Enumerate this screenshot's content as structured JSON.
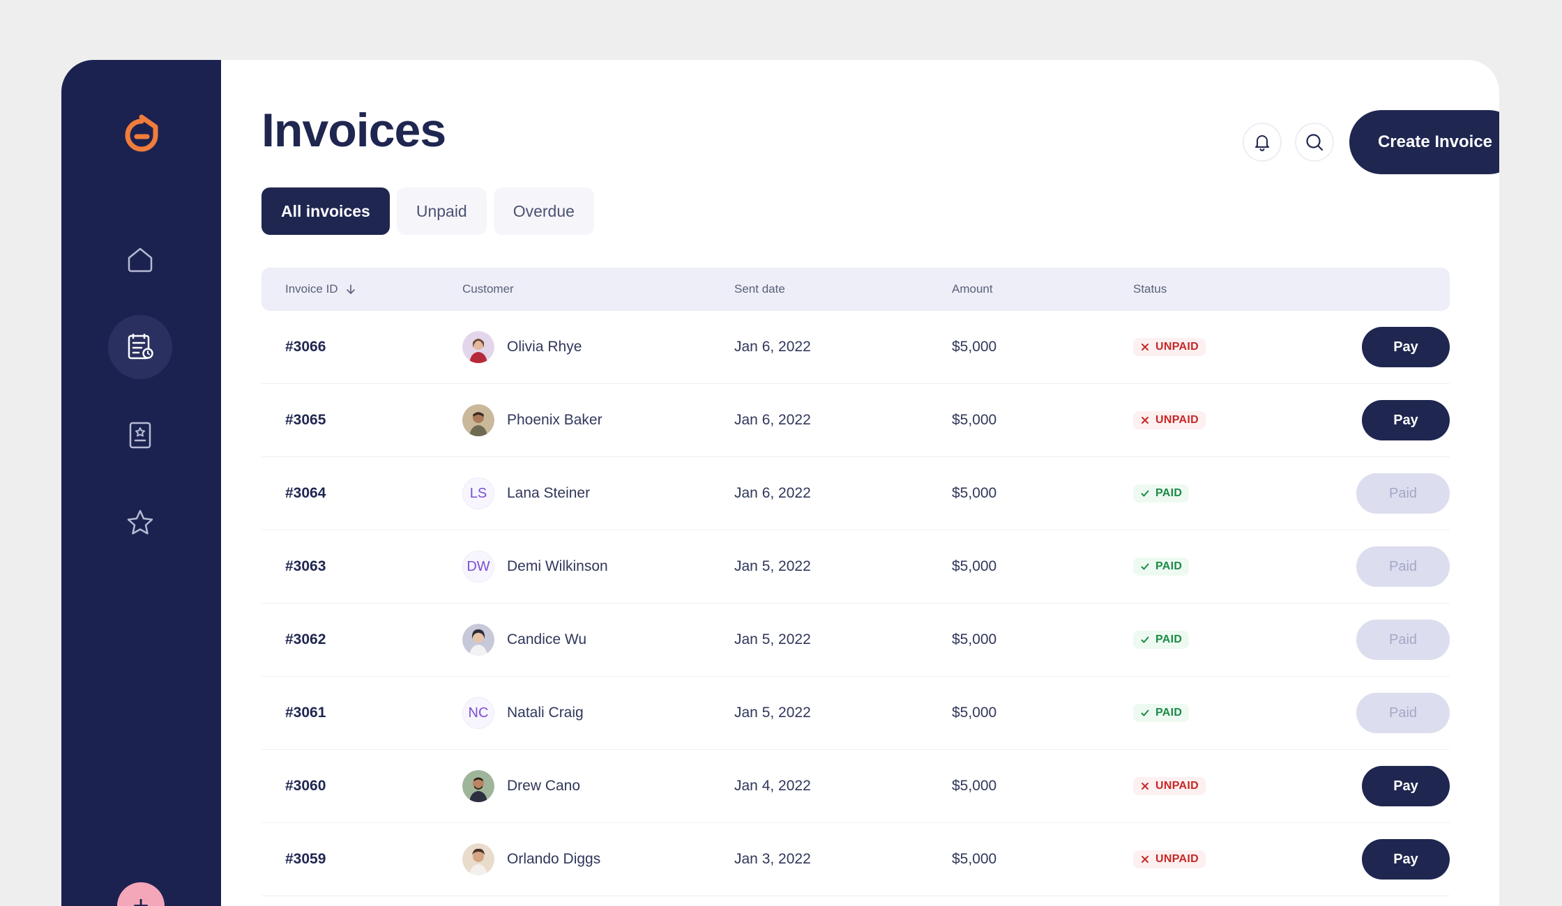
{
  "page": {
    "title": "Invoices"
  },
  "header": {
    "create_label": "Create Invoice",
    "notification_icon": "bell-icon",
    "search_icon": "search-icon"
  },
  "sidebar": {
    "items": [
      {
        "name": "home",
        "icon": "home-icon",
        "active": false
      },
      {
        "name": "invoices",
        "icon": "invoice-icon",
        "active": true
      },
      {
        "name": "clipboard",
        "icon": "clipboard-star-icon",
        "active": false
      },
      {
        "name": "favorites",
        "icon": "star-icon",
        "active": false
      }
    ],
    "fab_label": "+"
  },
  "tabs": [
    {
      "label": "All invoices",
      "active": true
    },
    {
      "label": "Unpaid",
      "active": false
    },
    {
      "label": "Overdue",
      "active": false
    }
  ],
  "table": {
    "columns": [
      "Invoice ID",
      "Customer",
      "Sent date",
      "Amount",
      "Status"
    ],
    "rows": [
      {
        "id": "#3066",
        "customer": "Olivia Rhye",
        "initials": "",
        "date": "Jan 6, 2022",
        "amount": "$5,000",
        "status": "UNPAID",
        "action": "Pay"
      },
      {
        "id": "#3065",
        "customer": "Phoenix Baker",
        "initials": "",
        "date": "Jan 6, 2022",
        "amount": "$5,000",
        "status": "UNPAID",
        "action": "Pay"
      },
      {
        "id": "#3064",
        "customer": "Lana Steiner",
        "initials": "LS",
        "date": "Jan 6, 2022",
        "amount": "$5,000",
        "status": "PAID",
        "action": "Paid"
      },
      {
        "id": "#3063",
        "customer": "Demi Wilkinson",
        "initials": "DW",
        "date": "Jan 5, 2022",
        "amount": "$5,000",
        "status": "PAID",
        "action": "Paid"
      },
      {
        "id": "#3062",
        "customer": "Candice Wu",
        "initials": "",
        "date": "Jan 5, 2022",
        "amount": "$5,000",
        "status": "PAID",
        "action": "Paid"
      },
      {
        "id": "#3061",
        "customer": "Natali Craig",
        "initials": "NC",
        "date": "Jan 5, 2022",
        "amount": "$5,000",
        "status": "PAID",
        "action": "Paid"
      },
      {
        "id": "#3060",
        "customer": "Drew Cano",
        "initials": "",
        "date": "Jan 4, 2022",
        "amount": "$5,000",
        "status": "UNPAID",
        "action": "Pay"
      },
      {
        "id": "#3059",
        "customer": "Orlando Diggs",
        "initials": "",
        "date": "Jan 3, 2022",
        "amount": "$5,000",
        "status": "UNPAID",
        "action": "Pay"
      }
    ]
  },
  "colors": {
    "navy": "#1f2650",
    "sidebar": "#1c2250",
    "accent_orange": "#f07d3b",
    "unpaid_red": "#c62828",
    "paid_green": "#1b8a46"
  }
}
